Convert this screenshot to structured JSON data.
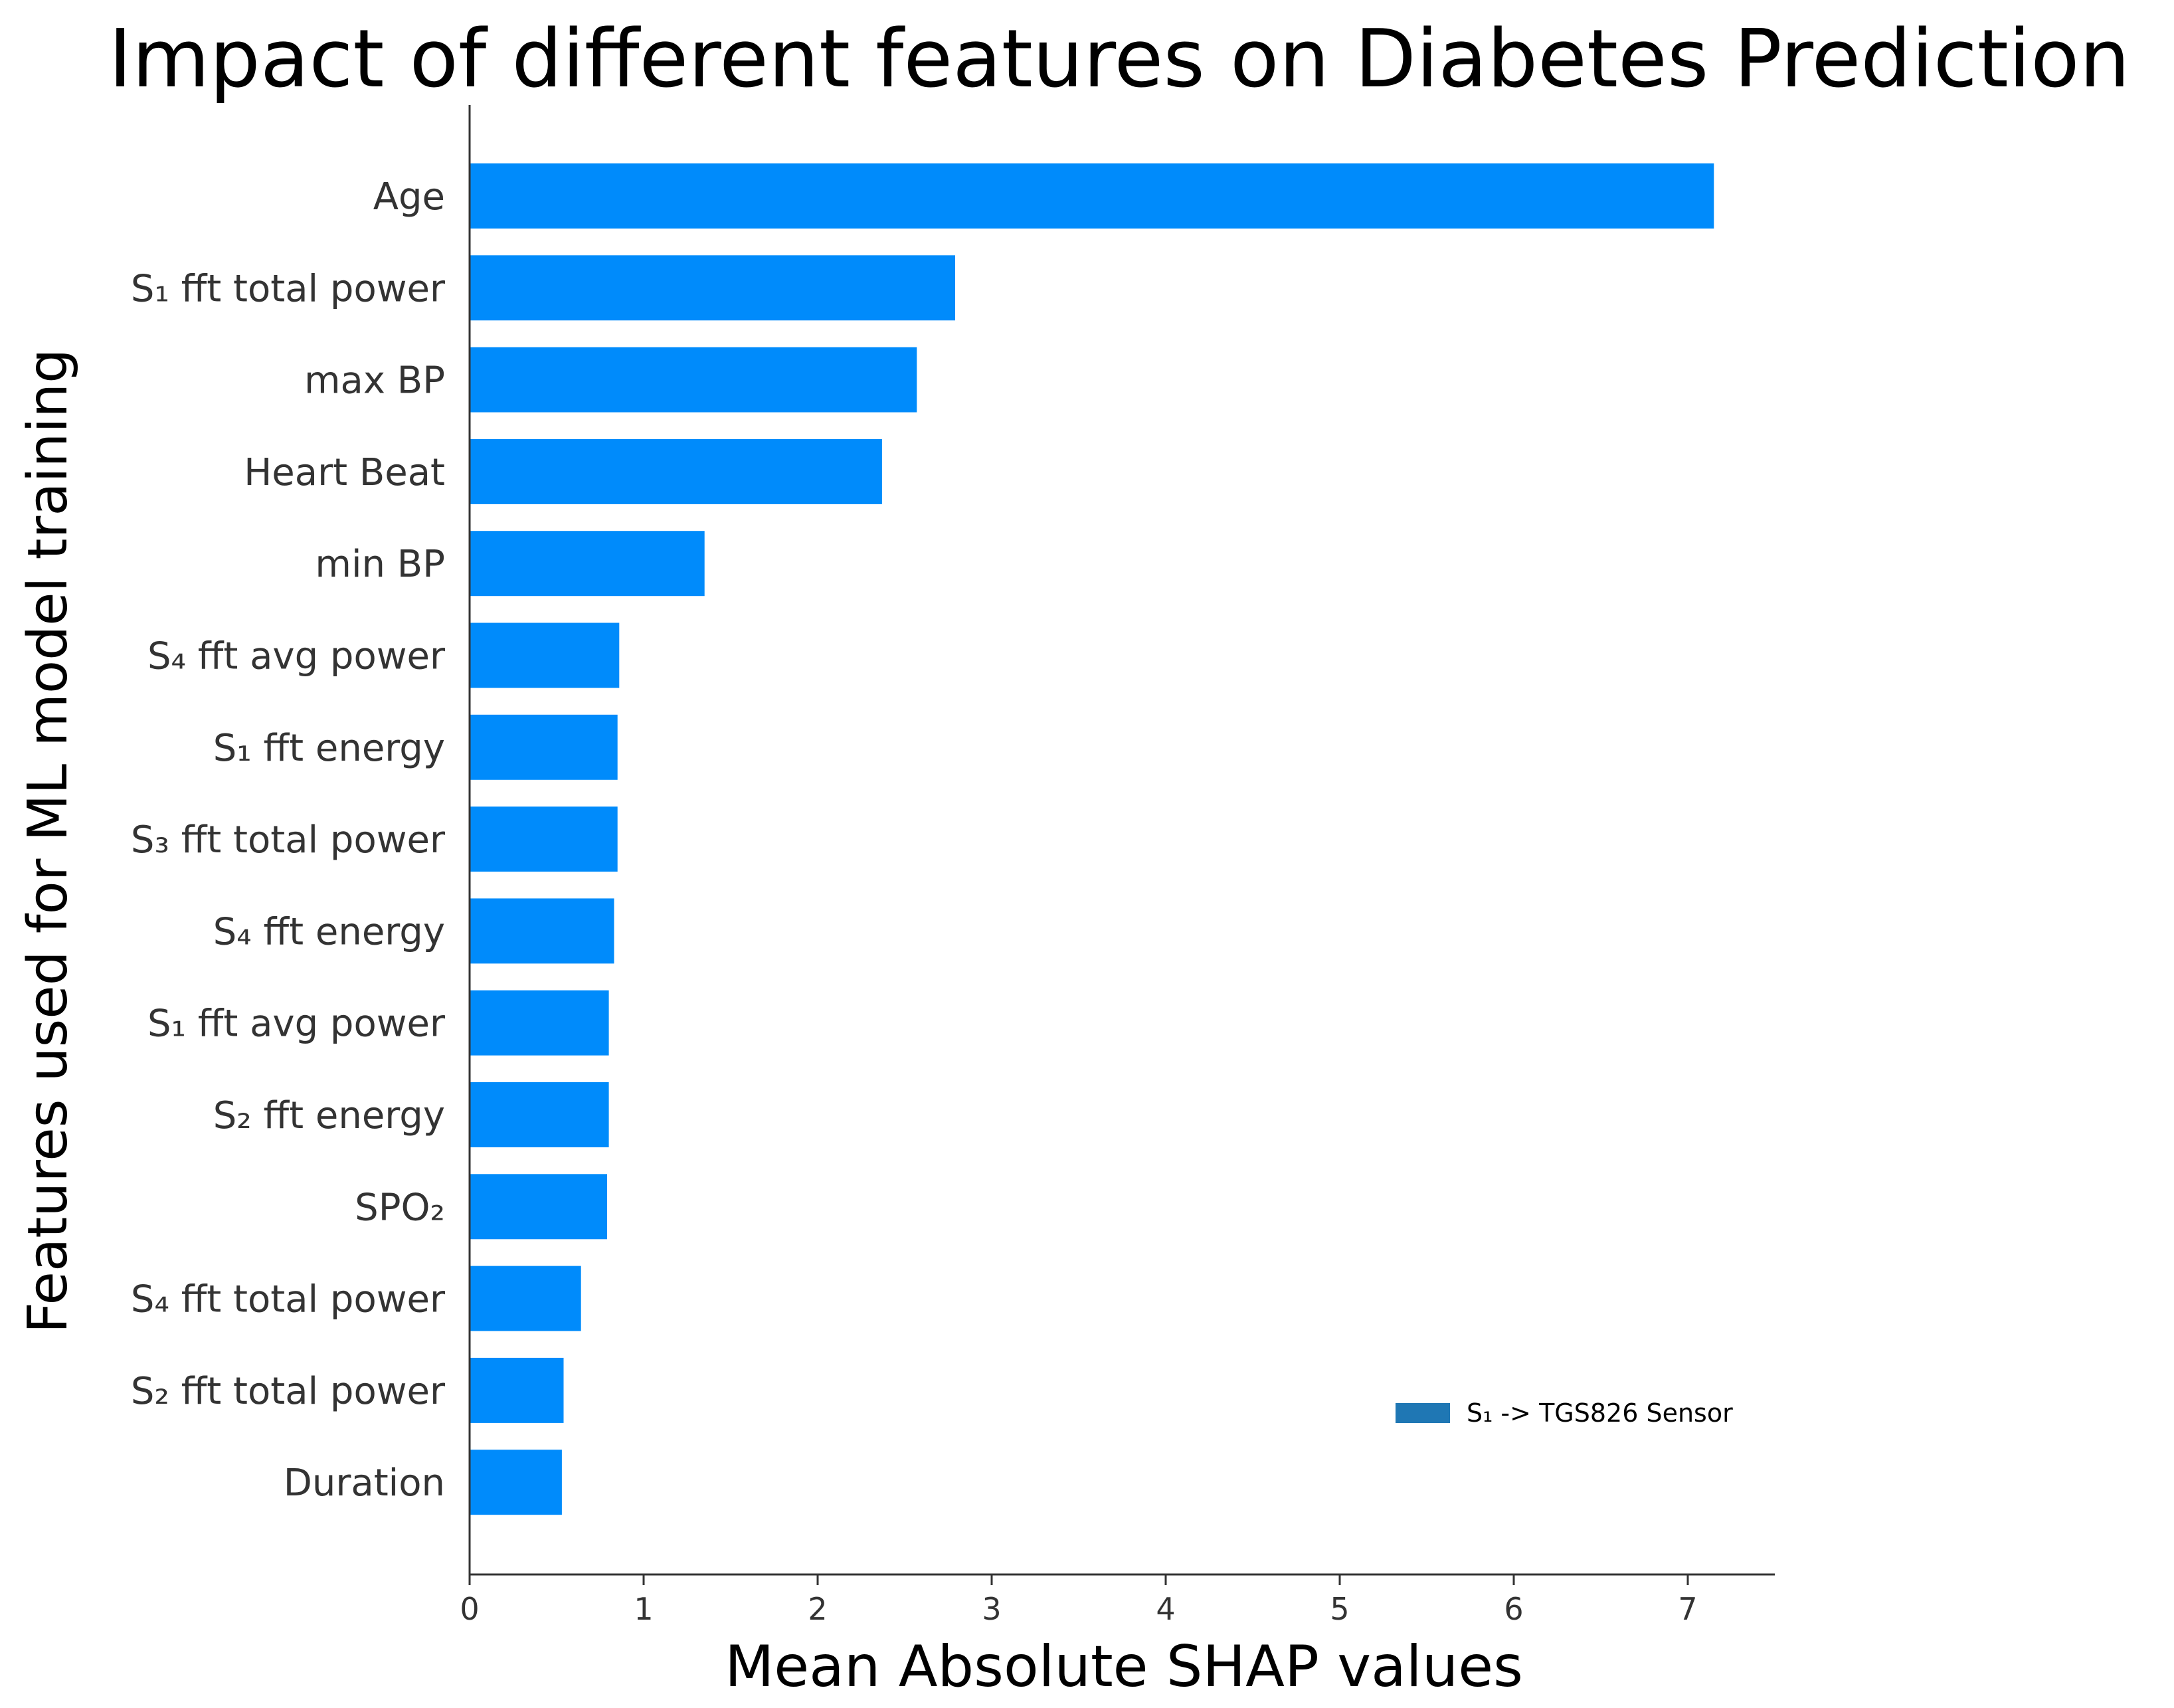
{
  "chart_data": {
    "type": "bar",
    "orientation": "horizontal",
    "title": "Impact of different features on Diabetes Prediction",
    "xlabel": "Mean Absolute SHAP values",
    "ylabel": "Features used for ML model training",
    "categories": [
      "Age",
      "S₁ fft total power",
      "max BP",
      "Heart Beat",
      "min BP",
      "S₄ fft avg power",
      "S₁ fft energy",
      "S₃ fft total power",
      "S₄ fft energy",
      "S₁ fft avg power",
      "S₂ fft energy",
      "SPO₂",
      "S₄ fft total power",
      "S₂ fft total power",
      "Duration"
    ],
    "values": [
      7.15,
      2.79,
      2.57,
      2.37,
      1.35,
      0.86,
      0.85,
      0.85,
      0.83,
      0.8,
      0.8,
      0.79,
      0.64,
      0.54,
      0.53
    ],
    "xlim": [
      0,
      7.5
    ],
    "xticks": [
      "0",
      "1",
      "2",
      "3",
      "4",
      "5",
      "6",
      "7"
    ],
    "bar_color": "#008bfb",
    "grid": false,
    "legend": {
      "label": "S₁ -> TGS826 Sensor",
      "color": "#1f77b4",
      "placement": "bottom-right"
    }
  }
}
